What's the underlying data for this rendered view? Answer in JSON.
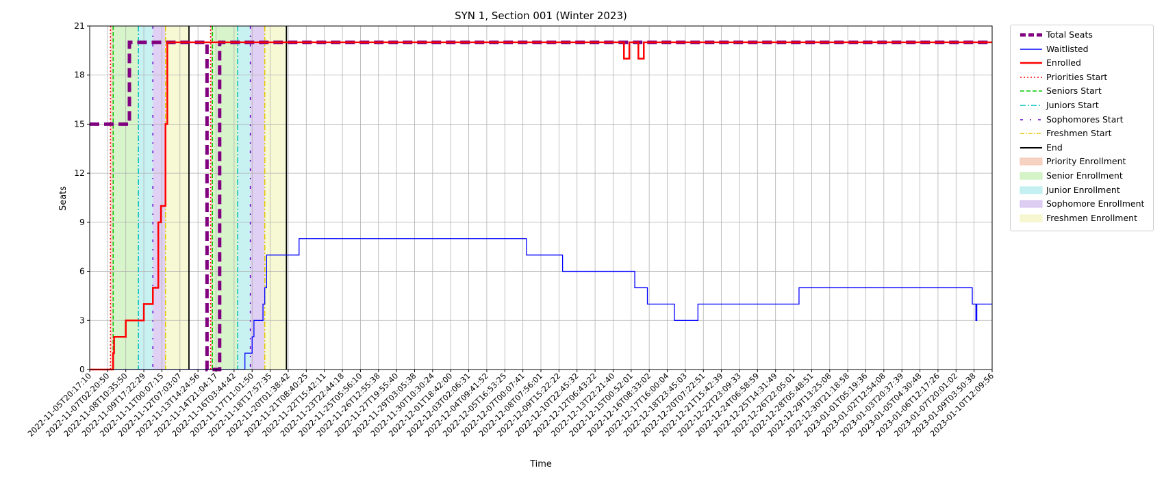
{
  "chart_data": {
    "type": "line",
    "title": "SYN 1, Section 001 (Winter 2023)",
    "xlabel": "Time",
    "ylabel": "Seats",
    "ylim": [
      0,
      21
    ],
    "yticks": [
      0,
      3,
      6,
      9,
      12,
      15,
      18,
      21
    ],
    "xlim": [
      "2022-11-05T20:17:10",
      "2023-01-10T12:09:56"
    ],
    "grid": true,
    "legend_position": "outside-right",
    "xtick_labels": [
      "2022-11-05T20:17:10",
      "2022-11-07T02:20:50",
      "2022-11-08T10:35:50",
      "2022-11-09T17:22:29",
      "2022-11-11T00:07:15",
      "2022-11-12T07:03:07",
      "2022-11-13T14:24:56",
      "2022-11-14T21:04:17",
      "2022-11-16T03:44:42",
      "2022-11-17T11:01:50",
      "2022-11-18T17:57:35",
      "2022-11-20T01:38:42",
      "2022-11-21T08:40:25",
      "2022-11-22T15:42:11",
      "2022-11-23T22:44:18",
      "2022-11-25T05:56:10",
      "2022-11-26T12:55:38",
      "2022-11-27T19:55:40",
      "2022-11-29T03:05:38",
      "2022-11-30T10:30:24",
      "2022-12-01T18:42:00",
      "2022-12-03T02:06:31",
      "2022-12-04T09:41:52",
      "2022-12-05T16:53:25",
      "2022-12-07T00:07:41",
      "2022-12-08T07:56:01",
      "2022-12-09T15:22:22",
      "2022-12-10T22:45:32",
      "2022-12-12T06:43:22",
      "2022-12-13T22:21:40",
      "2022-12-15T00:52:01",
      "2022-12-16T08:33:02",
      "2022-12-17T16:00:04",
      "2022-12-18T23:45:03",
      "2022-12-20T07:22:51",
      "2022-12-21T15:42:39",
      "2022-12-22T23:09:33",
      "2022-12-24T06:58:59",
      "2022-12-25T14:31:49",
      "2022-12-26T22:05:01",
      "2022-12-28T05:48:51",
      "2022-12-29T13:25:08",
      "2022-12-30T21:18:58",
      "2023-01-01T05:19:36",
      "2023-01-02T12:54:08",
      "2023-01-03T20:37:39",
      "2023-01-05T04:30:48",
      "2023-01-06T12:17:26",
      "2023-01-07T20:01:02",
      "2023-01-09T03:50:38",
      "2023-01-10T12:09:56"
    ],
    "series": [
      {
        "name": "Total Seats",
        "style": "dashed-thick",
        "color": "#800080",
        "points": [
          [
            0,
            15
          ],
          [
            2.2,
            15
          ],
          [
            2.2,
            20
          ],
          [
            6.5,
            20
          ],
          [
            6.5,
            0
          ],
          [
            7.2,
            0
          ],
          [
            7.2,
            20
          ],
          [
            50,
            20
          ]
        ]
      },
      {
        "name": "Waitlisted",
        "style": "solid-thin",
        "color": "#0000ff",
        "points": [
          [
            0,
            0
          ],
          [
            8.6,
            0
          ],
          [
            8.6,
            1
          ],
          [
            9.0,
            1
          ],
          [
            9.0,
            2
          ],
          [
            9.1,
            2
          ],
          [
            9.1,
            3
          ],
          [
            9.6,
            3
          ],
          [
            9.6,
            4
          ],
          [
            9.7,
            4
          ],
          [
            9.7,
            5
          ],
          [
            9.8,
            5
          ],
          [
            9.8,
            7
          ],
          [
            11.6,
            7
          ],
          [
            11.6,
            8
          ],
          [
            24.2,
            8
          ],
          [
            24.2,
            7
          ],
          [
            26.2,
            7
          ],
          [
            26.2,
            6
          ],
          [
            30.2,
            6
          ],
          [
            30.2,
            5
          ],
          [
            30.9,
            5
          ],
          [
            30.9,
            4
          ],
          [
            32.4,
            4
          ],
          [
            32.4,
            3
          ],
          [
            33.7,
            3
          ],
          [
            33.7,
            4
          ],
          [
            39.3,
            4
          ],
          [
            39.3,
            5
          ],
          [
            48.9,
            5
          ],
          [
            48.9,
            4
          ],
          [
            49.1,
            4
          ],
          [
            49.1,
            3
          ],
          [
            49.15,
            3
          ],
          [
            49.15,
            4
          ],
          [
            50,
            4
          ]
        ]
      },
      {
        "name": "Enrolled",
        "style": "solid-thick",
        "color": "#ff0000",
        "points": [
          [
            0,
            0
          ],
          [
            1.3,
            0
          ],
          [
            1.3,
            1
          ],
          [
            1.35,
            1
          ],
          [
            1.35,
            2
          ],
          [
            2.0,
            2
          ],
          [
            2.0,
            3
          ],
          [
            3.0,
            3
          ],
          [
            3.0,
            4
          ],
          [
            3.5,
            4
          ],
          [
            3.5,
            5
          ],
          [
            3.8,
            5
          ],
          [
            3.8,
            9
          ],
          [
            3.95,
            9
          ],
          [
            3.95,
            10
          ],
          [
            4.2,
            10
          ],
          [
            4.2,
            15
          ],
          [
            4.3,
            15
          ],
          [
            4.3,
            20
          ],
          [
            29.6,
            20
          ],
          [
            29.6,
            19
          ],
          [
            29.9,
            19
          ],
          [
            29.9,
            20
          ],
          [
            30.4,
            20
          ],
          [
            30.4,
            19
          ],
          [
            30.7,
            19
          ],
          [
            30.7,
            20
          ],
          [
            50,
            20
          ]
        ]
      }
    ],
    "markers": [
      {
        "name": "Priorities Start",
        "color": "#ff0000",
        "style": "dotted",
        "x": [
          1.15,
          6.7
        ]
      },
      {
        "name": "Seniors Start",
        "color": "#00cc00",
        "style": "dashed",
        "x": [
          1.3,
          6.8
        ]
      },
      {
        "name": "Juniors Start",
        "color": "#00bfbf",
        "style": "dashdot",
        "x": [
          2.7,
          8.2
        ]
      },
      {
        "name": "Sophomores Start",
        "color": "#6600cc",
        "style": "dashdot-sparse",
        "x": [
          3.5,
          8.9
        ]
      },
      {
        "name": "Freshmen Start",
        "color": "#e6c800",
        "style": "dashdot",
        "x": [
          4.2,
          9.7
        ]
      },
      {
        "name": "End",
        "color": "#000000",
        "style": "solid",
        "x": [
          5.5,
          10.9
        ]
      }
    ],
    "spans": [
      {
        "name": "Priority Enrollment",
        "color": "#f4c7b4",
        "ranges": [
          [
            1.15,
            1.3
          ],
          [
            6.7,
            6.8
          ]
        ]
      },
      {
        "name": "Senior Enrollment",
        "color": "#c9f0b9",
        "ranges": [
          [
            1.3,
            2.7
          ],
          [
            6.8,
            8.2
          ]
        ]
      },
      {
        "name": "Junior Enrollment",
        "color": "#b6eced",
        "ranges": [
          [
            2.7,
            3.5
          ],
          [
            8.2,
            8.9
          ]
        ]
      },
      {
        "name": "Sophomore Enrollment",
        "color": "#d5c0ef",
        "ranges": [
          [
            3.5,
            4.2
          ],
          [
            8.9,
            9.7
          ]
        ]
      },
      {
        "name": "Freshmen Enrollment",
        "color": "#f4f5c6",
        "ranges": [
          [
            4.2,
            5.5
          ],
          [
            9.7,
            10.9
          ]
        ]
      }
    ],
    "legend": [
      {
        "label": "Total Seats",
        "kind": "line",
        "color": "#800080",
        "dash": "8,4",
        "width": 5
      },
      {
        "label": "Waitlisted",
        "kind": "line",
        "color": "#0000ff",
        "dash": "",
        "width": 1.5
      },
      {
        "label": "Enrolled",
        "kind": "line",
        "color": "#ff0000",
        "dash": "",
        "width": 2.5
      },
      {
        "label": "Priorities Start",
        "kind": "line",
        "color": "#ff0000",
        "dash": "2,3",
        "width": 1.5
      },
      {
        "label": "Seniors Start",
        "kind": "line",
        "color": "#00cc00",
        "dash": "6,3",
        "width": 1.5
      },
      {
        "label": "Juniors Start",
        "kind": "line",
        "color": "#00bfbf",
        "dash": "8,3,2,3",
        "width": 1.5
      },
      {
        "label": "Sophomores Start",
        "kind": "line",
        "color": "#6600cc",
        "dash": "4,10,2,10",
        "width": 1.5
      },
      {
        "label": "Freshmen Start",
        "kind": "line",
        "color": "#e6c800",
        "dash": "6,2,2,2",
        "width": 1.5
      },
      {
        "label": "End",
        "kind": "line",
        "color": "#000000",
        "dash": "",
        "width": 2
      },
      {
        "label": "Priority Enrollment",
        "kind": "patch",
        "color": "#f4c7b4"
      },
      {
        "label": "Senior Enrollment",
        "kind": "patch",
        "color": "#c9f0b9"
      },
      {
        "label": "Junior Enrollment",
        "kind": "patch",
        "color": "#b6eced"
      },
      {
        "label": "Sophomore Enrollment",
        "kind": "patch",
        "color": "#d5c0ef"
      },
      {
        "label": "Freshmen Enrollment",
        "kind": "patch",
        "color": "#f4f5c6"
      }
    ]
  }
}
